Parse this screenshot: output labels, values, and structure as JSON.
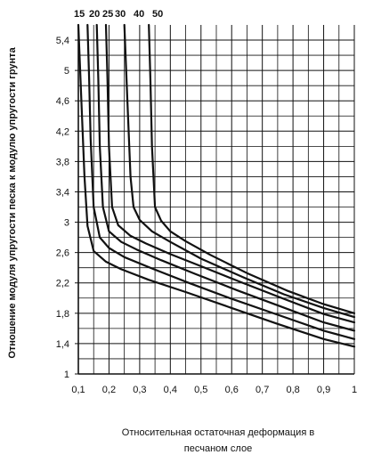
{
  "chart_data": {
    "type": "line",
    "xlabel_lines": [
      "Относительная остаточная деформация в",
      "песчаном слое"
    ],
    "ylabel": "Отношение модуля упругости песка к модулю упругости грунта",
    "xlim": [
      0.1,
      1.0
    ],
    "ylim": [
      1.0,
      5.6
    ],
    "x_ticks": [
      "0,1",
      "0,2",
      "0,3",
      "0,4",
      "0,5",
      "0,6",
      "0,7",
      "0,8",
      "0,9",
      "1"
    ],
    "y_ticks": [
      "1",
      "1,4",
      "1,8",
      "2,2",
      "2,6",
      "3",
      "3,4",
      "3,8",
      "4,2",
      "4,6",
      "5",
      "5,4"
    ],
    "grid": true,
    "series": [
      {
        "name": "15",
        "x": [
          0.1,
          0.11,
          0.12,
          0.13,
          0.15,
          0.19,
          0.24,
          0.33,
          0.45,
          0.6,
          0.75,
          0.9,
          1.0
        ],
        "y": [
          5.6,
          4.6,
          3.6,
          2.95,
          2.62,
          2.48,
          2.38,
          2.24,
          2.08,
          1.87,
          1.66,
          1.46,
          1.36
        ]
      },
      {
        "name": "20",
        "x": [
          0.13,
          0.135,
          0.14,
          0.15,
          0.17,
          0.2,
          0.25,
          0.34,
          0.46,
          0.6,
          0.75,
          0.9,
          1.0
        ],
        "y": [
          5.6,
          4.9,
          4.1,
          3.2,
          2.8,
          2.66,
          2.54,
          2.39,
          2.2,
          1.99,
          1.78,
          1.57,
          1.46
        ]
      },
      {
        "name": "25",
        "x": [
          0.16,
          0.165,
          0.17,
          0.18,
          0.2,
          0.24,
          0.29,
          0.37,
          0.48,
          0.62,
          0.76,
          0.9,
          1.0
        ],
        "y": [
          5.6,
          4.9,
          4.0,
          3.2,
          2.88,
          2.74,
          2.64,
          2.5,
          2.32,
          2.1,
          1.89,
          1.68,
          1.57
        ]
      },
      {
        "name": "30",
        "x": [
          0.19,
          0.195,
          0.2,
          0.21,
          0.23,
          0.27,
          0.32,
          0.4,
          0.5,
          0.63,
          0.77,
          0.9,
          1.0
        ],
        "y": [
          5.6,
          4.9,
          4.0,
          3.2,
          2.96,
          2.82,
          2.72,
          2.58,
          2.42,
          2.21,
          1.99,
          1.79,
          1.68
        ]
      },
      {
        "name": "40",
        "x": [
          0.25,
          0.26,
          0.27,
          0.28,
          0.3,
          0.34,
          0.4,
          0.5,
          0.64,
          0.77,
          0.9,
          1.0
        ],
        "y": [
          5.6,
          4.6,
          3.6,
          3.2,
          3.03,
          2.88,
          2.74,
          2.52,
          2.27,
          2.05,
          1.87,
          1.75
        ]
      },
      {
        "name": "50",
        "x": [
          0.33,
          0.335,
          0.34,
          0.35,
          0.37,
          0.4,
          0.45,
          0.53,
          0.65,
          0.78,
          0.9,
          1.0
        ],
        "y": [
          5.6,
          4.9,
          4.0,
          3.2,
          3.02,
          2.88,
          2.75,
          2.57,
          2.33,
          2.1,
          1.92,
          1.8
        ]
      }
    ]
  }
}
